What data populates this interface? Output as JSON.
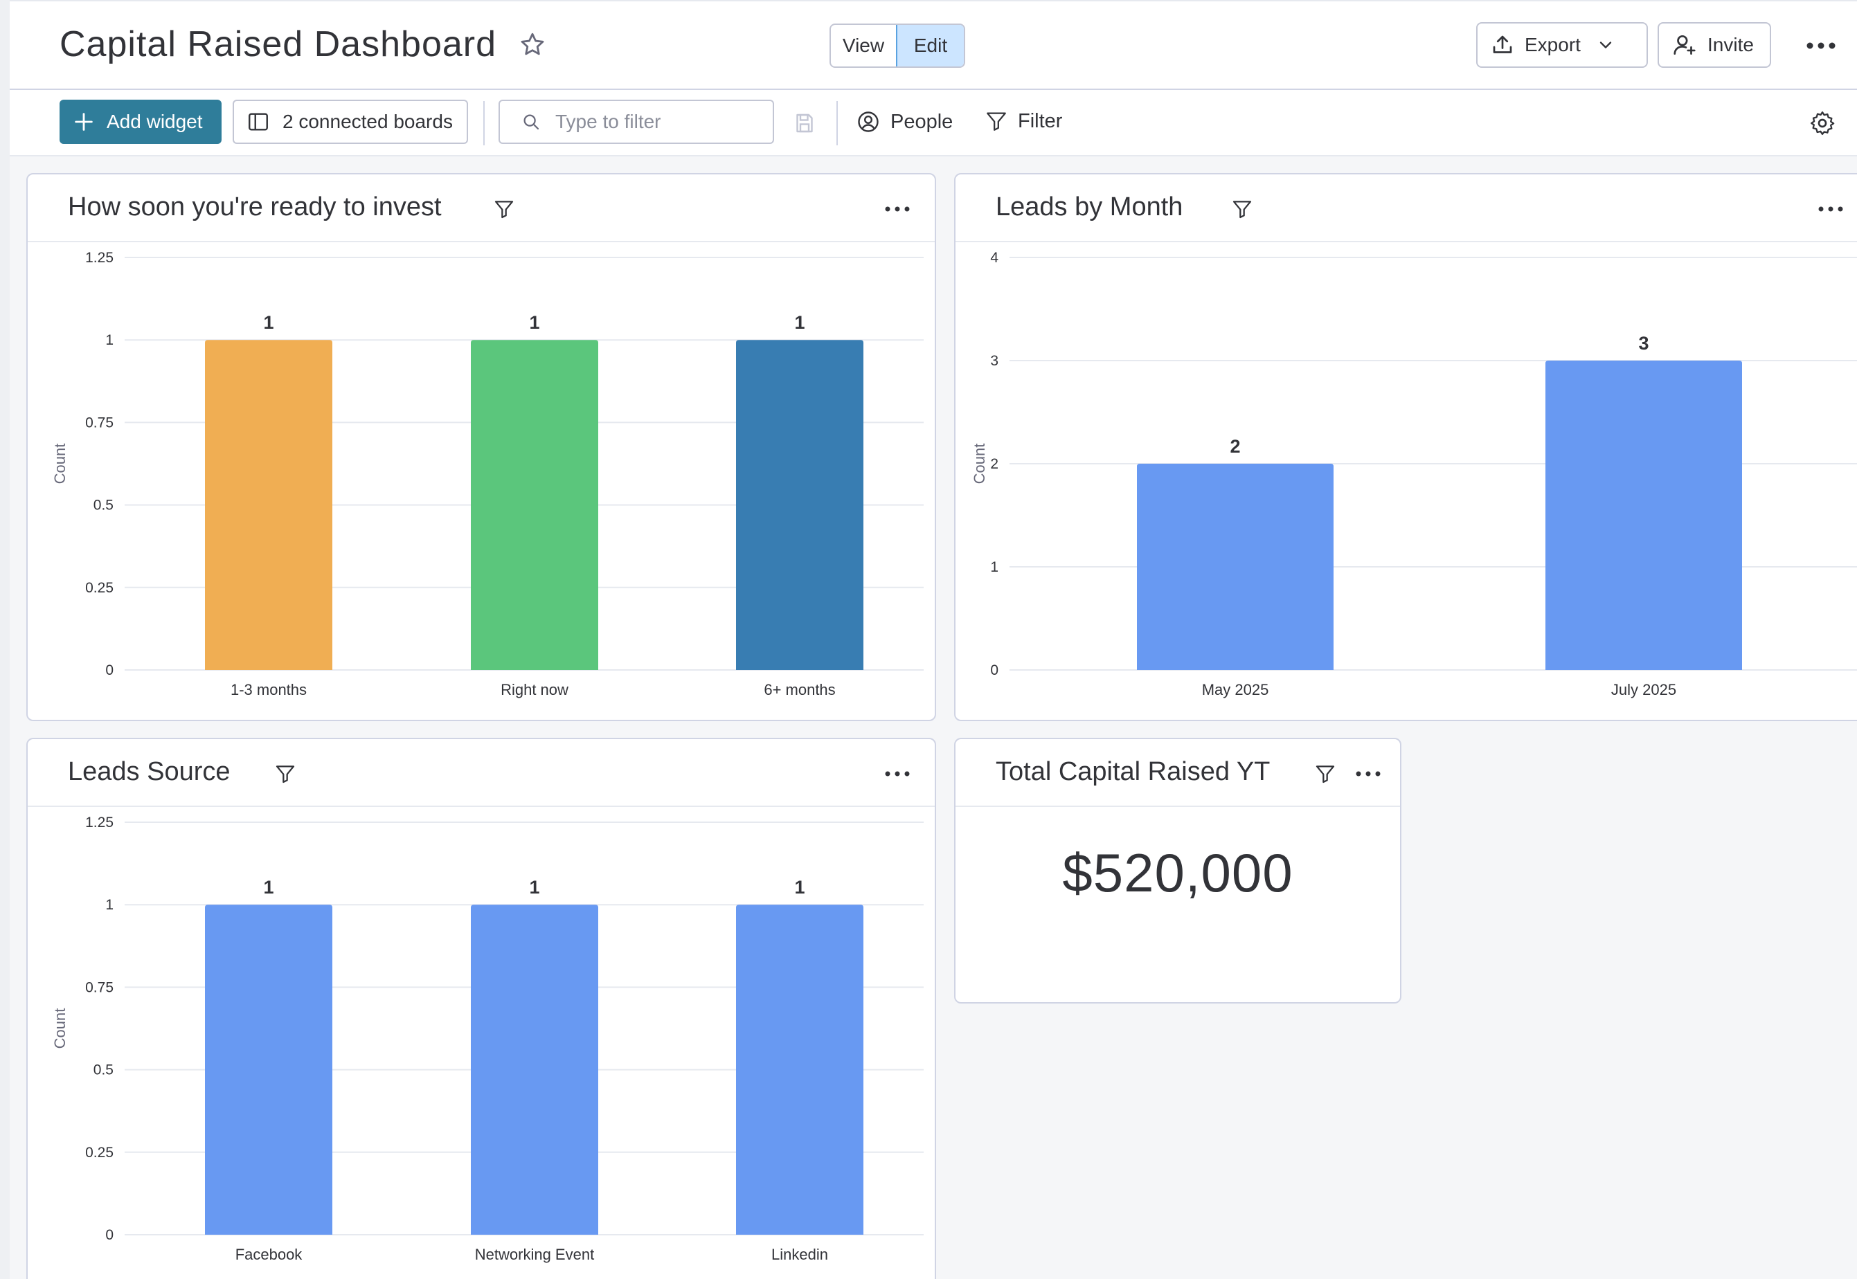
{
  "header": {
    "title": "Capital Raised Dashboard",
    "mode_view": "View",
    "mode_edit": "Edit",
    "export_label": "Export",
    "invite_label": "Invite"
  },
  "toolbar": {
    "add_widget_label": "Add widget",
    "connected_boards_label": "2 connected boards",
    "search_placeholder": "Type to filter",
    "people_label": "People",
    "filter_label": "Filter"
  },
  "widgets": {
    "ready_to_invest": {
      "title": "How soon you're ready to invest"
    },
    "leads_by_month": {
      "title": "Leads by Month"
    },
    "leads_source": {
      "title": "Leads Source"
    },
    "total_capital": {
      "title": "Total Capital Raised YT",
      "value": "$520,000"
    }
  },
  "colors": {
    "accent": "#2f7d9a",
    "bar_orange": "#f0ae53",
    "bar_green": "#5bc67c",
    "bar_darkblue": "#387db2",
    "bar_blue": "#6899f2"
  },
  "chart_data": [
    {
      "id": "ready",
      "type": "bar",
      "title": "How soon you're ready to invest",
      "ylabel": "Count",
      "categories": [
        "1-3 months",
        "Right now",
        "6+ months"
      ],
      "values": [
        1,
        1,
        1
      ],
      "colors": [
        "#f0ae53",
        "#5bc67c",
        "#387db2"
      ],
      "ylim": [
        0,
        1.25
      ],
      "yticks": [
        "0",
        "0.25",
        "0.5",
        "0.75",
        "1",
        "1.25"
      ],
      "grid": true
    },
    {
      "id": "month",
      "type": "bar",
      "title": "Leads by Month",
      "ylabel": "Count",
      "categories": [
        "May 2025",
        "July 2025"
      ],
      "values": [
        2,
        3
      ],
      "colors": [
        "#6899f2",
        "#6899f2"
      ],
      "ylim": [
        0,
        4
      ],
      "yticks": [
        "0",
        "1",
        "2",
        "3",
        "4"
      ],
      "grid": true
    },
    {
      "id": "source",
      "type": "bar",
      "title": "Leads Source",
      "ylabel": "Count",
      "categories": [
        "Facebook",
        "Networking Event",
        "Linkedin"
      ],
      "values": [
        1,
        1,
        1
      ],
      "colors": [
        "#6899f2",
        "#6899f2",
        "#6899f2"
      ],
      "ylim": [
        0,
        1.25
      ],
      "yticks": [
        "0",
        "0.25",
        "0.5",
        "0.75",
        "1",
        "1.25"
      ],
      "grid": true
    }
  ]
}
